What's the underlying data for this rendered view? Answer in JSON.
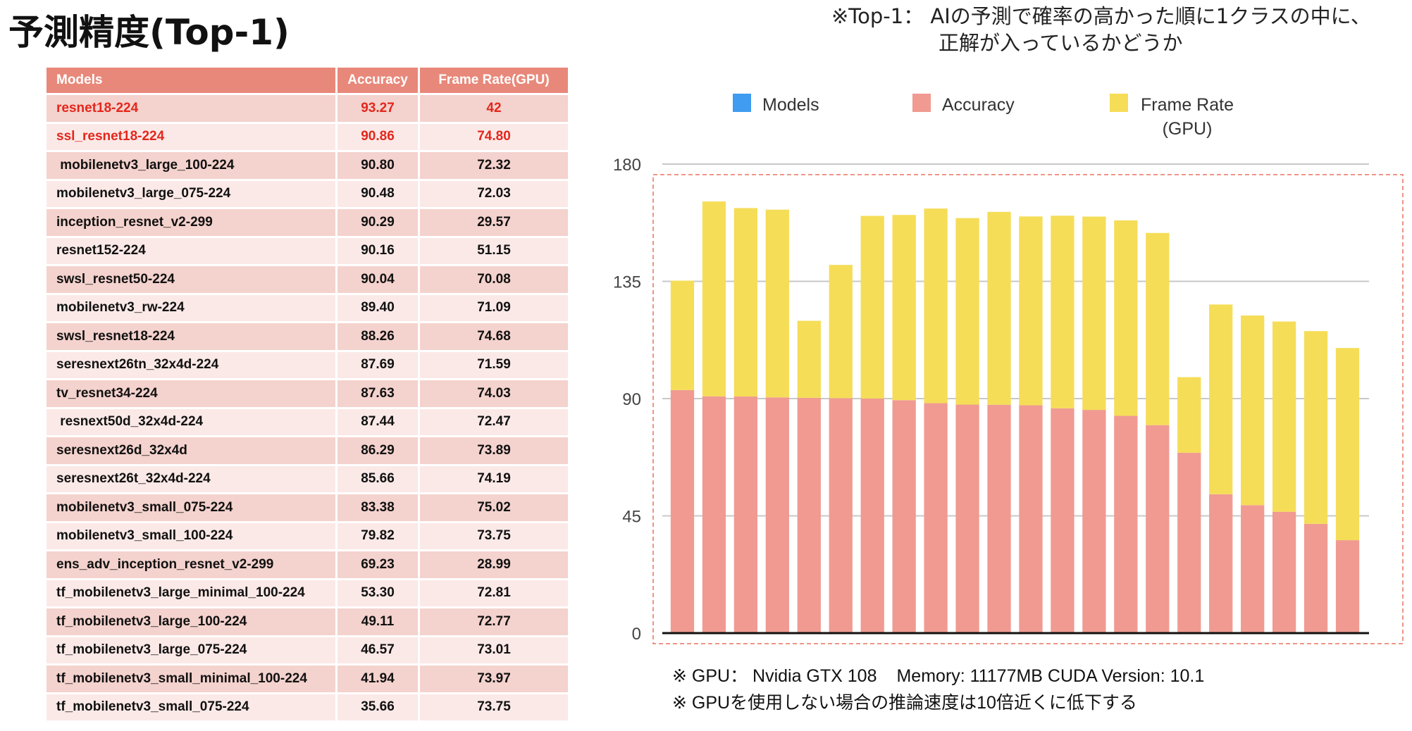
{
  "title": "予測精度(Top-1)",
  "note": {
    "line1": "※Top-1： AIの予測で確率の高かった順に1クラスの中に、",
    "line2": "正解が入っているかどうか"
  },
  "table": {
    "headers": [
      "Models",
      "Accuracy",
      "Frame Rate(GPU)"
    ],
    "rows": [
      {
        "model": "resnet18-224",
        "accuracy": "93.27",
        "fps": "42",
        "highlight": true
      },
      {
        "model": "ssl_resnet18-224",
        "accuracy": "90.86",
        "fps": "74.80",
        "highlight": true
      },
      {
        "model": " mobilenetv3_large_100-224",
        "accuracy": "90.80",
        "fps": "72.32"
      },
      {
        "model": "mobilenetv3_large_075-224",
        "accuracy": "90.48",
        "fps": "72.03"
      },
      {
        "model": "inception_resnet_v2-299",
        "accuracy": "90.29",
        "fps": "29.57"
      },
      {
        "model": "resnet152-224",
        "accuracy": "90.16",
        "fps": "51.15"
      },
      {
        "model": "swsl_resnet50-224",
        "accuracy": "90.04",
        "fps": "70.08"
      },
      {
        "model": "mobilenetv3_rw-224",
        "accuracy": "89.40",
        "fps": "71.09"
      },
      {
        "model": "swsl_resnet18-224",
        "accuracy": "88.26",
        "fps": "74.68"
      },
      {
        "model": "seresnext26tn_32x4d-224",
        "accuracy": "87.69",
        "fps": "71.59"
      },
      {
        "model": "tv_resnet34-224",
        "accuracy": "87.63",
        "fps": "74.03"
      },
      {
        "model": " resnext50d_32x4d-224",
        "accuracy": "87.44",
        "fps": "72.47"
      },
      {
        "model": "seresnext26d_32x4d",
        "accuracy": "86.29",
        "fps": "73.89"
      },
      {
        "model": "seresnext26t_32x4d-224",
        "accuracy": "85.66",
        "fps": "74.19"
      },
      {
        "model": "mobilenetv3_small_075-224",
        "accuracy": "83.38",
        "fps": "75.02"
      },
      {
        "model": "mobilenetv3_small_100-224",
        "accuracy": "79.82",
        "fps": "73.75"
      },
      {
        "model": "ens_adv_inception_resnet_v2-299",
        "accuracy": "69.23",
        "fps": "28.99"
      },
      {
        "model": "tf_mobilenetv3_large_minimal_100-224",
        "accuracy": "53.30",
        "fps": "72.81"
      },
      {
        "model": "tf_mobilenetv3_large_100-224",
        "accuracy": "49.11",
        "fps": "72.77"
      },
      {
        "model": "tf_mobilenetv3_large_075-224",
        "accuracy": "46.57",
        "fps": "73.01"
      },
      {
        "model": "tf_mobilenetv3_small_minimal_100-224",
        "accuracy": "41.94",
        "fps": "73.97"
      },
      {
        "model": "tf_mobilenetv3_small_075-224",
        "accuracy": "35.66",
        "fps": "73.75"
      }
    ]
  },
  "chart_data": {
    "type": "bar",
    "stacked": true,
    "legend_position": "top",
    "legend": [
      "Models",
      "Accuracy",
      "Frame Rate\n(GPU)"
    ],
    "legend_colors": [
      "#3f9cf0",
      "#f09a92",
      "#f5dd58"
    ],
    "yticks": [
      "180",
      "135",
      "90",
      "45",
      "0"
    ],
    "ylim": [
      0,
      180
    ],
    "grid": true,
    "categories": [
      "resnet18-224",
      "ssl_resnet18-224",
      "mobilenetv3_large_100-224",
      "mobilenetv3_large_075-224",
      "inception_resnet_v2-299",
      "resnet152-224",
      "swsl_resnet50-224",
      "mobilenetv3_rw-224",
      "swsl_resnet18-224",
      "seresnext26tn_32x4d-224",
      "tv_resnet34-224",
      "resnext50d_32x4d-224",
      "seresnext26d_32x4d",
      "seresnext26t_32x4d-224",
      "mobilenetv3_small_075-224",
      "mobilenetv3_small_100-224",
      "ens_adv_inception_resnet_v2-299",
      "tf_mobilenetv3_large_minimal_100-224",
      "tf_mobilenetv3_large_100-224",
      "tf_mobilenetv3_large_075-224",
      "tf_mobilenetv3_small_minimal_100-224",
      "tf_mobilenetv3_small_075-224"
    ],
    "series": [
      {
        "name": "Accuracy",
        "color": "#f09a92",
        "values": [
          93.27,
          90.86,
          90.8,
          90.48,
          90.29,
          90.16,
          90.04,
          89.4,
          88.26,
          87.69,
          87.63,
          87.44,
          86.29,
          85.66,
          83.38,
          79.82,
          69.23,
          53.3,
          49.11,
          46.57,
          41.94,
          35.66
        ]
      },
      {
        "name": "Frame Rate (GPU)",
        "color": "#f5dd58",
        "values": [
          42,
          74.8,
          72.32,
          72.03,
          29.57,
          51.15,
          70.08,
          71.09,
          74.68,
          71.59,
          74.03,
          72.47,
          73.89,
          74.19,
          75.02,
          73.75,
          28.99,
          72.81,
          72.77,
          73.01,
          73.97,
          73.75
        ]
      }
    ]
  },
  "footnotes": {
    "line1_a": "※ GPU：  Nvidia GTX 108",
    "line1_b": "Memory: 11177MB CUDA Version: 10.1",
    "line2": "※ GPUを使用しない場合の推論速度は10倍近くに低下する"
  }
}
